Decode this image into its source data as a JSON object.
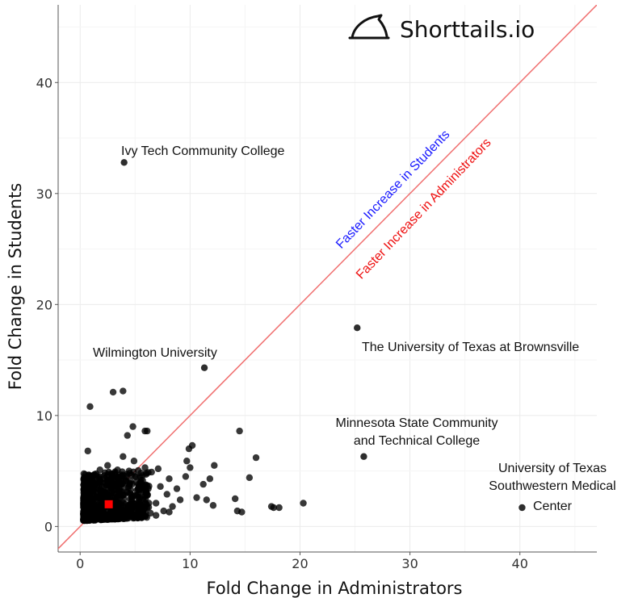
{
  "chart_data": {
    "type": "scatter",
    "title": "",
    "xlabel": "Fold Change in Administrators",
    "ylabel": "Fold Change in Students",
    "xlim": [
      -2,
      47
    ],
    "ylim": [
      -2.3,
      47
    ],
    "xticks": [
      0,
      10,
      20,
      30,
      40
    ],
    "yticks": [
      0,
      10,
      20,
      30,
      40
    ],
    "grid": true,
    "reference_line": {
      "type": "y=x",
      "color": "#f07070"
    },
    "region_labels": [
      {
        "text": "Faster Increase in Students",
        "color": "#1a1aff"
      },
      {
        "text": "Faster Increase in Administrators",
        "color": "#ee1111"
      }
    ],
    "brand": "Shorttails.io",
    "highlight_point": {
      "x": 2.6,
      "y": 2.0,
      "color": "#ff0000",
      "marker": "square"
    },
    "labeled_points": [
      {
        "label": "Ivy Tech Community College",
        "x": 4.0,
        "y": 32.8
      },
      {
        "label": "Wilmington University",
        "x": 11.3,
        "y": 14.3
      },
      {
        "label": "The University of Texas at Brownsville",
        "x": 25.2,
        "y": 17.9
      },
      {
        "label": "Minnesota State Community and Technical College",
        "x": 25.8,
        "y": 6.3
      },
      {
        "label": "University of Texas Southwestern Medical Center",
        "x": 40.2,
        "y": 1.7
      }
    ],
    "annotations": {
      "ivy": "Ivy Tech Community College",
      "wilmington": "Wilmington University",
      "brownsville": "The University of Texas at Brownsville",
      "minnesota_1": "Minnesota State Community",
      "minnesota_2": "and Technical College",
      "utsw_1": "University of Texas",
      "utsw_2": "Southwestern Medical",
      "utsw_3": "Center"
    },
    "points": [
      [
        3.9,
        12.2
      ],
      [
        3.0,
        12.1
      ],
      [
        0.9,
        10.8
      ],
      [
        4.8,
        9.0
      ],
      [
        5.9,
        8.6
      ],
      [
        6.1,
        8.6
      ],
      [
        4.3,
        8.2
      ],
      [
        0.7,
        6.8
      ],
      [
        1.5,
        3.0
      ],
      [
        2.0,
        2.5
      ],
      [
        2.5,
        2.8
      ],
      [
        1.8,
        1.6
      ],
      [
        3.2,
        2.4
      ],
      [
        2.8,
        1.3
      ],
      [
        1.2,
        1.9
      ],
      [
        0.9,
        1.1
      ],
      [
        1.6,
        4.0
      ],
      [
        2.2,
        3.6
      ],
      [
        3.6,
        3.1
      ],
      [
        4.1,
        2.0
      ],
      [
        3.8,
        4.4
      ],
      [
        4.6,
        3.3
      ],
      [
        5.1,
        2.8
      ],
      [
        2.6,
        4.9
      ],
      [
        1.3,
        2.6
      ],
      [
        0.8,
        1.6
      ],
      [
        2.4,
        1.9
      ],
      [
        3.1,
        1.7
      ],
      [
        4.4,
        1.5
      ],
      [
        5.2,
        1.9
      ],
      [
        5.7,
        2.4
      ],
      [
        6.2,
        3.4
      ],
      [
        6.5,
        4.9
      ],
      [
        5.9,
        5.3
      ],
      [
        4.9,
        5.9
      ],
      [
        3.9,
        6.3
      ],
      [
        6.9,
        2.1
      ],
      [
        7.3,
        3.6
      ],
      [
        7.9,
        2.9
      ],
      [
        8.4,
        1.8
      ],
      [
        7.1,
        5.2
      ],
      [
        8.1,
        4.3
      ],
      [
        6.4,
        1.2
      ],
      [
        5.4,
        1.1
      ],
      [
        4.1,
        1.0
      ],
      [
        3.3,
        0.9
      ],
      [
        2.1,
        0.8
      ],
      [
        1.1,
        0.7
      ],
      [
        0.6,
        1.0
      ],
      [
        1.9,
        1.2
      ],
      [
        2.9,
        2.2
      ],
      [
        3.5,
        3.3
      ],
      [
        2.3,
        3.1
      ],
      [
        1.4,
        3.4
      ],
      [
        1.0,
        2.1
      ],
      [
        0.5,
        1.4
      ],
      [
        2.7,
        2.6
      ],
      [
        3.0,
        3.8
      ],
      [
        4.2,
        4.1
      ],
      [
        5.0,
        4.5
      ],
      [
        5.5,
        3.9
      ],
      [
        4.7,
        2.5
      ],
      [
        3.7,
        2.0
      ],
      [
        2.0,
        2.0
      ],
      [
        9.9,
        7.0
      ],
      [
        10.2,
        7.3
      ],
      [
        9.7,
        5.9
      ],
      [
        10.0,
        5.3
      ],
      [
        10.6,
        2.6
      ],
      [
        11.2,
        3.8
      ],
      [
        11.8,
        4.3
      ],
      [
        12.2,
        5.5
      ],
      [
        11.5,
        2.4
      ],
      [
        12.1,
        1.9
      ],
      [
        9.6,
        4.5
      ],
      [
        9.1,
        2.4
      ],
      [
        8.8,
        3.4
      ],
      [
        14.5,
        8.6
      ],
      [
        16.0,
        6.2
      ],
      [
        15.4,
        4.4
      ],
      [
        14.3,
        1.4
      ],
      [
        14.7,
        1.3
      ],
      [
        14.1,
        2.5
      ],
      [
        17.4,
        1.8
      ],
      [
        17.6,
        1.7
      ],
      [
        18.1,
        1.7
      ],
      [
        20.3,
        2.1
      ],
      [
        7.6,
        1.4
      ],
      [
        8.1,
        1.3
      ],
      [
        6.9,
        1.0
      ],
      [
        6.0,
        3.0
      ],
      [
        5.3,
        3.5
      ],
      [
        4.5,
        4.8
      ],
      [
        3.4,
        5.1
      ],
      [
        2.5,
        5.5
      ],
      [
        1.8,
        5.1
      ],
      [
        1.2,
        4.6
      ],
      [
        0.8,
        3.9
      ],
      [
        0.4,
        3.1
      ],
      [
        0.6,
        2.4
      ],
      [
        1.6,
        2.3
      ],
      [
        2.2,
        2.4
      ],
      [
        3.7,
        1.4
      ],
      [
        4.6,
        2.0
      ]
    ]
  }
}
